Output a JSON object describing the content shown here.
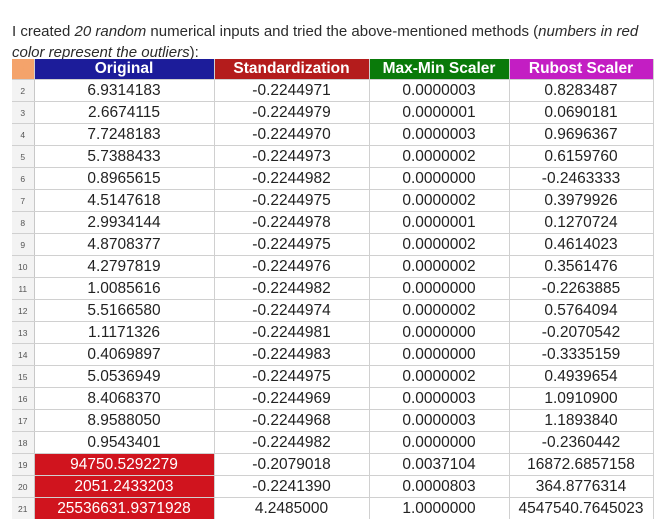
{
  "intro": {
    "part1": "I created ",
    "part2_italic": "20 random",
    "part3": " numerical inputs and tried the above-mentioned methods (",
    "part4_italic": "numbers in red color represent the outliers",
    "part5": "):"
  },
  "table": {
    "header_row_number": "1",
    "columns": [
      "Original",
      "Standardization",
      "Max-Min Scaler",
      "Rubost Scaler"
    ],
    "header_colors": {
      "original": "#1c1c9a",
      "standardization": "#b41c1c",
      "max_min": "#0a7a0a",
      "robust": "#c31ec3"
    },
    "outlier_color": "#d0141e",
    "rows": [
      {
        "rn": "2",
        "v": [
          "6.9314183",
          "-0.2244971",
          "0.0000003",
          "0.8283487"
        ]
      },
      {
        "rn": "3",
        "v": [
          "2.6674115",
          "-0.2244979",
          "0.0000001",
          "0.0690181"
        ]
      },
      {
        "rn": "4",
        "v": [
          "7.7248183",
          "-0.2244970",
          "0.0000003",
          "0.9696367"
        ]
      },
      {
        "rn": "5",
        "v": [
          "5.7388433",
          "-0.2244973",
          "0.0000002",
          "0.6159760"
        ]
      },
      {
        "rn": "6",
        "v": [
          "0.8965615",
          "-0.2244982",
          "0.0000000",
          "-0.2463333"
        ]
      },
      {
        "rn": "7",
        "v": [
          "4.5147618",
          "-0.2244975",
          "0.0000002",
          "0.3979926"
        ]
      },
      {
        "rn": "8",
        "v": [
          "2.9934144",
          "-0.2244978",
          "0.0000001",
          "0.1270724"
        ]
      },
      {
        "rn": "9",
        "v": [
          "4.8708377",
          "-0.2244975",
          "0.0000002",
          "0.4614023"
        ]
      },
      {
        "rn": "10",
        "v": [
          "4.2797819",
          "-0.2244976",
          "0.0000002",
          "0.3561476"
        ]
      },
      {
        "rn": "11",
        "v": [
          "1.0085616",
          "-0.2244982",
          "0.0000000",
          "-0.2263885"
        ]
      },
      {
        "rn": "12",
        "v": [
          "5.5166580",
          "-0.2244974",
          "0.0000002",
          "0.5764094"
        ]
      },
      {
        "rn": "13",
        "v": [
          "1.1171326",
          "-0.2244981",
          "0.0000000",
          "-0.2070542"
        ]
      },
      {
        "rn": "14",
        "v": [
          "0.4069897",
          "-0.2244983",
          "0.0000000",
          "-0.3335159"
        ]
      },
      {
        "rn": "15",
        "v": [
          "5.0536949",
          "-0.2244975",
          "0.0000002",
          "0.4939654"
        ]
      },
      {
        "rn": "16",
        "v": [
          "8.4068370",
          "-0.2244969",
          "0.0000003",
          "1.0910900"
        ]
      },
      {
        "rn": "17",
        "v": [
          "8.9588050",
          "-0.2244968",
          "0.0000003",
          "1.1893840"
        ]
      },
      {
        "rn": "18",
        "v": [
          "0.9543401",
          "-0.2244982",
          "0.0000000",
          "-0.2360442"
        ]
      },
      {
        "rn": "19",
        "v": [
          "94750.5292279",
          "-0.2079018",
          "0.0037104",
          "16872.6857158"
        ]
      },
      {
        "rn": "20",
        "v": [
          "2051.2433203",
          "-0.2241390",
          "0.0000803",
          "364.8776314"
        ]
      },
      {
        "rn": "21",
        "v": [
          "25536631.9371928",
          "4.2485000",
          "1.0000000",
          "4547540.7645023"
        ]
      }
    ],
    "outlier_row_numbers": [
      "19",
      "20",
      "21"
    ]
  }
}
